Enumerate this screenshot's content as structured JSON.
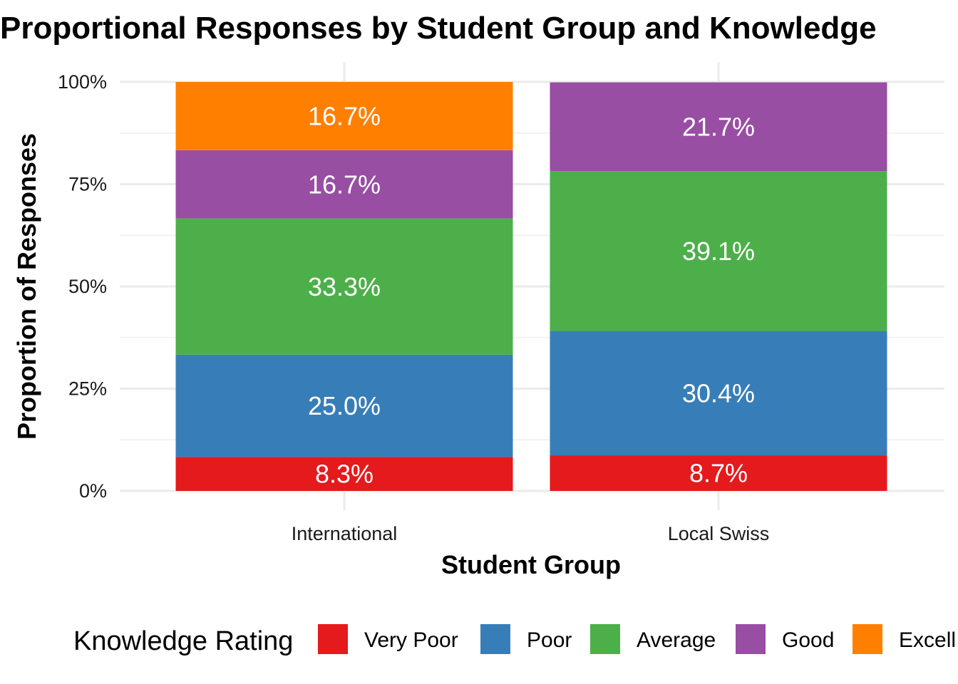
{
  "chart_data": {
    "type": "bar",
    "stacked": true,
    "title": "Proportional Responses by Student Group and Knowledge",
    "xlabel": "Student Group",
    "ylabel": "Proportion of Responses",
    "categories": [
      "International",
      "Local Swiss"
    ],
    "ylim": [
      0,
      1
    ],
    "yticks": [
      "0%",
      "25%",
      "50%",
      "75%",
      "100%"
    ],
    "grid": true,
    "legend_title": "Knowledge Rating",
    "legend_position": "bottom",
    "series": [
      {
        "name": "Very Poor",
        "color": "#E41A1C",
        "values": [
          0.083,
          0.087
        ],
        "labels": [
          "8.3%",
          "8.7%"
        ]
      },
      {
        "name": "Poor",
        "color": "#377EB8",
        "values": [
          0.25,
          0.304
        ],
        "labels": [
          "25.0%",
          "30.4%"
        ]
      },
      {
        "name": "Average",
        "color": "#4DAF4A",
        "values": [
          0.333,
          0.391
        ],
        "labels": [
          "33.3%",
          "39.1%"
        ]
      },
      {
        "name": "Good",
        "color": "#984EA3",
        "values": [
          0.167,
          0.217
        ],
        "labels": [
          "16.7%",
          "21.7%"
        ]
      },
      {
        "name": "Excell",
        "color": "#FF7F00",
        "values": [
          0.167,
          0
        ],
        "labels": [
          "16.7%",
          ""
        ]
      }
    ]
  }
}
